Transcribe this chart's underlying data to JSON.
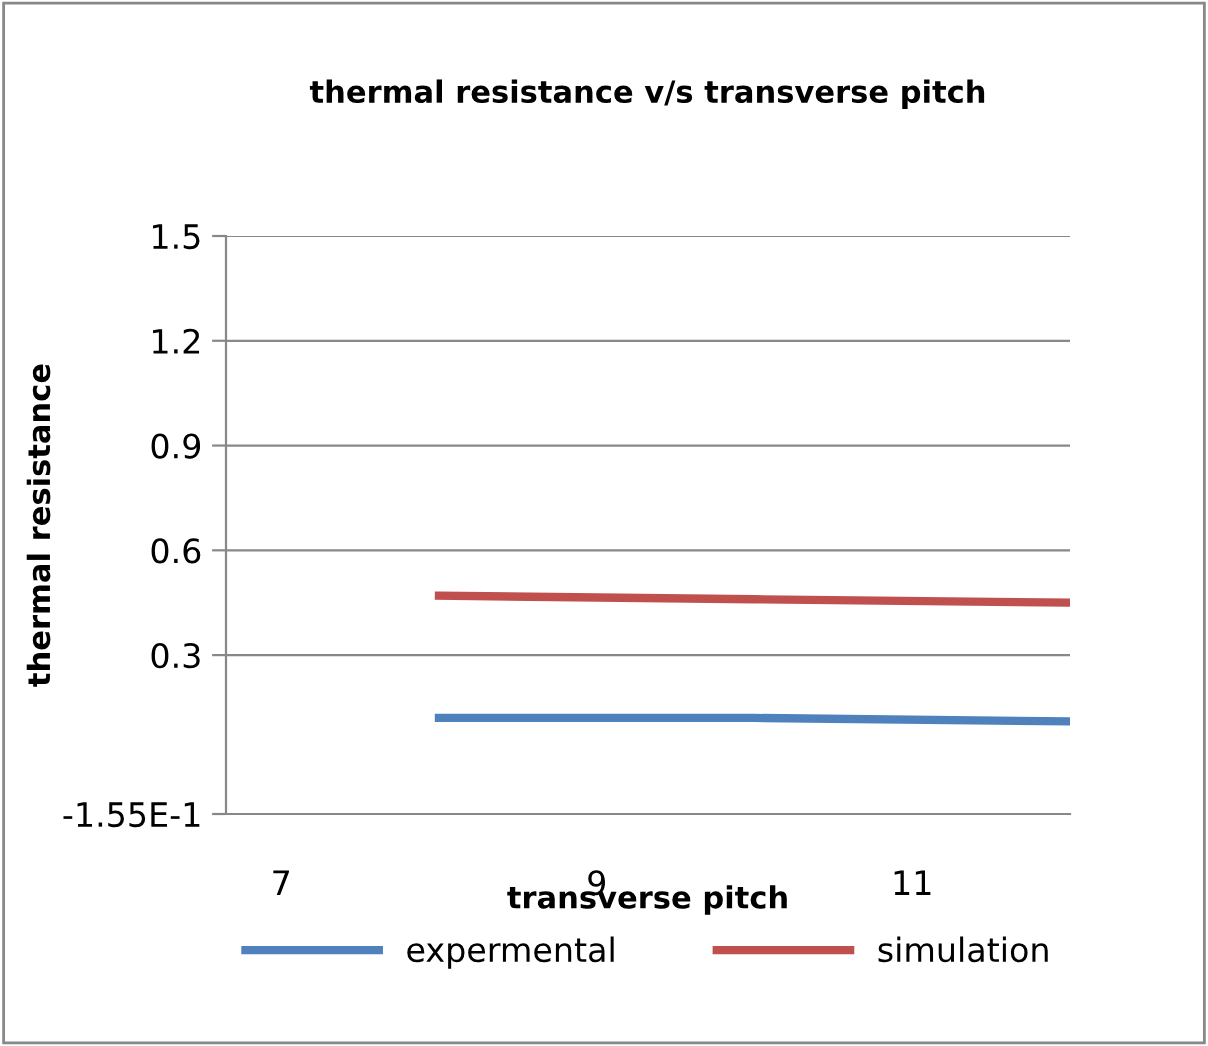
{
  "chart_data": {
    "type": "line",
    "title": "thermal resistance v/s transverse pitch",
    "xlabel": "transverse pitch",
    "ylabel": "thermal resistance",
    "x": [
      8,
      10,
      12
    ],
    "series": [
      {
        "name": "expermental",
        "color": "#4f81bd",
        "values": [
          0.12,
          0.12,
          0.11
        ]
      },
      {
        "name": "simulation",
        "color": "#c0504d",
        "values": [
          0.47,
          0.46,
          0.45
        ]
      }
    ],
    "xlim": [
      6.65,
      12
    ],
    "xticks": [
      7,
      9,
      11
    ],
    "ylim": [
      -0.155,
      1.5
    ],
    "yticks": [
      {
        "value": -0.155,
        "label": "-1.55E-1"
      },
      0.3,
      0.6,
      0.9,
      1.2,
      1.5
    ],
    "grid": "y",
    "legend": "bottom",
    "marker": "none",
    "line_style": "solid"
  }
}
